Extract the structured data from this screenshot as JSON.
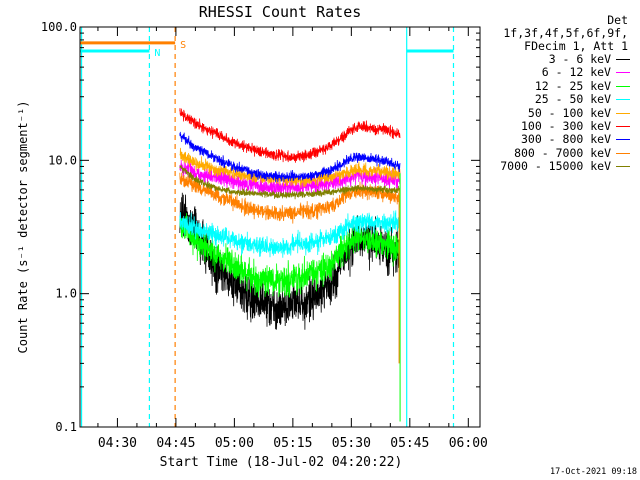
{
  "chart_data": {
    "type": "line",
    "title": "RHESSI Count Rates",
    "xlabel": "Start Time (18-Jul-02 04:20:22)",
    "ylabel": "Count Rate (s⁻¹ detector segment⁻¹)",
    "yscale": "log",
    "ylim": [
      0.1,
      100.0
    ],
    "xlim_minutes": [
      20.4,
      123.0
    ],
    "x_unit": "minutes after 04:00",
    "x_ticks": [
      {
        "label": "04:30",
        "value": 30
      },
      {
        "label": "04:45",
        "value": 45
      },
      {
        "label": "05:00",
        "value": 60
      },
      {
        "label": "05:15",
        "value": 75
      },
      {
        "label": "05:30",
        "value": 90
      },
      {
        "label": "05:45",
        "value": 105
      },
      {
        "label": "06:00",
        "value": 120
      }
    ],
    "y_ticks": [
      {
        "label": "0.1",
        "value": 0.1
      },
      {
        "label": "1.0",
        "value": 1.0
      },
      {
        "label": "10.0",
        "value": 10.0
      },
      {
        "label": "100.0",
        "value": 100.0
      }
    ],
    "legend_header": [
      "Det 1f,3f,4f,5f,6f,9f,",
      "FDecim 1, Att 1"
    ],
    "x": [
      46,
      50,
      55,
      60,
      65,
      70,
      75,
      80,
      85,
      88,
      90,
      92,
      95,
      98,
      100,
      102.5
    ],
    "series": [
      {
        "name": "3 - 6 keV",
        "color": "#000000",
        "noise": 0.32,
        "values": [
          4.0,
          3.0,
          1.6,
          1.2,
          0.9,
          0.8,
          0.85,
          0.9,
          1.2,
          1.8,
          2.4,
          2.7,
          2.5,
          2.3,
          2.0,
          2.1
        ]
      },
      {
        "name": "6 - 12 keV",
        "color": "#ff00ff",
        "noise": 0.12,
        "values": [
          9.0,
          8.0,
          7.5,
          7.0,
          6.5,
          6.3,
          6.3,
          6.4,
          6.8,
          7.2,
          7.5,
          7.6,
          7.4,
          7.3,
          7.2,
          7.0
        ]
      },
      {
        "name": "12 - 25 keV",
        "color": "#00ff00",
        "noise": 0.22,
        "values": [
          3.3,
          2.5,
          2.0,
          1.6,
          1.3,
          1.25,
          1.3,
          1.4,
          1.7,
          2.2,
          2.5,
          2.6,
          2.5,
          2.4,
          2.3,
          2.2
        ]
      },
      {
        "name": "25 - 50 keV",
        "color": "#00ffff",
        "noise": 0.14,
        "values": [
          3.5,
          3.1,
          2.8,
          2.5,
          2.3,
          2.2,
          2.3,
          2.4,
          2.7,
          3.1,
          3.3,
          3.5,
          3.4,
          3.4,
          3.4,
          3.4
        ]
      },
      {
        "name": "50 - 100 keV",
        "color": "#ffaa00",
        "noise": 0.09,
        "values": [
          11.0,
          9.5,
          8.5,
          8.0,
          7.5,
          7.2,
          7.1,
          7.2,
          7.6,
          8.0,
          8.3,
          8.4,
          8.3,
          8.2,
          8.1,
          8.0
        ]
      },
      {
        "name": "100 - 300 keV",
        "color": "#ff0000",
        "noise": 0.08,
        "values": [
          23.0,
          19.0,
          16.0,
          13.5,
          12.0,
          11.0,
          10.5,
          11.2,
          13.0,
          15.0,
          17.0,
          18.0,
          17.5,
          17.0,
          16.5,
          15.5
        ]
      },
      {
        "name": "300 - 800 keV",
        "color": "#0000ff",
        "noise": 0.07,
        "values": [
          15.5,
          12.5,
          10.5,
          9.0,
          8.0,
          7.6,
          7.5,
          7.7,
          8.5,
          9.5,
          10.3,
          10.6,
          10.3,
          10.0,
          9.6,
          9.0
        ]
      },
      {
        "name": "800 - 7000 keV",
        "color": "#ff8000",
        "noise": 0.11,
        "values": [
          7.5,
          6.5,
          5.5,
          4.8,
          4.3,
          4.0,
          4.0,
          4.2,
          4.6,
          5.2,
          5.7,
          5.9,
          5.8,
          5.6,
          5.4,
          5.3
        ]
      },
      {
        "name": "7000 - 15000 keV",
        "color": "#808000",
        "noise": 0.05,
        "values": [
          9.0,
          7.2,
          6.2,
          5.8,
          5.6,
          5.5,
          5.5,
          5.6,
          5.8,
          6.0,
          6.1,
          6.2,
          6.1,
          6.0,
          6.0,
          6.0
        ]
      }
    ],
    "annotations": [
      {
        "label": "S",
        "color": "#ff8000",
        "kind": "attenuator-bar",
        "x_from": 20.4,
        "x_to": 44.8,
        "y": 76
      },
      {
        "label": "N",
        "color": "#00ffff",
        "kind": "night-bar",
        "x_from": 20.4,
        "x_to": 38.2,
        "y": 66
      },
      {
        "label": "",
        "color": "#00ffff",
        "kind": "night-bar",
        "x_from": 104.2,
        "x_to": 116.2,
        "y": 66
      }
    ],
    "vertical_markers": [
      {
        "x": 20.8,
        "color": "#00ffff",
        "style": "solid"
      },
      {
        "x": 38.2,
        "color": "#00ffff",
        "style": "dashed"
      },
      {
        "x": 44.8,
        "color": "#ff8000",
        "style": "dashed"
      },
      {
        "x": 104.2,
        "color": "#00ffff",
        "style": "solid"
      },
      {
        "x": 116.2,
        "color": "#00ffff",
        "style": "dashed"
      }
    ]
  },
  "footer": {
    "timestamp": "17-Oct-2021 09:18"
  }
}
